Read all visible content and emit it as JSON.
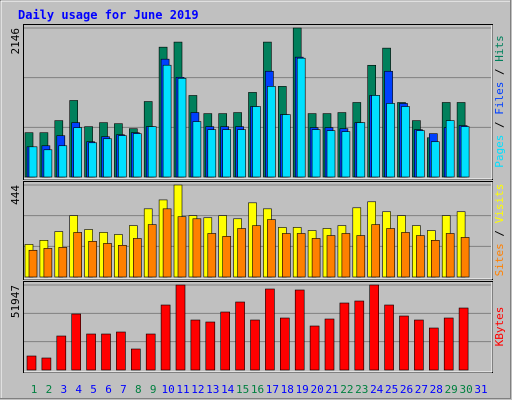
{
  "chart_data": [
    {
      "type": "bar",
      "title": "Daily usage for June 2019",
      "categories": [
        "1",
        "2",
        "3",
        "4",
        "5",
        "6",
        "7",
        "8",
        "9",
        "10",
        "11",
        "12",
        "13",
        "14",
        "15",
        "16",
        "17",
        "18",
        "19",
        "20",
        "21",
        "22",
        "23",
        "24",
        "25",
        "26",
        "27",
        "28",
        "29",
        "30",
        "31"
      ],
      "category_colors": [
        "#008040",
        "#008040",
        "#0000ff",
        "#0000ff",
        "#0000ff",
        "#0000ff",
        "#0000ff",
        "#008040",
        "#008040",
        "#0000ff",
        "#0000ff",
        "#0000ff",
        "#0000ff",
        "#0000ff",
        "#008040",
        "#008040",
        "#0000ff",
        "#0000ff",
        "#0000ff",
        "#0000ff",
        "#0000ff",
        "#008040",
        "#008040",
        "#0000ff",
        "#0000ff",
        "#0000ff",
        "#0000ff",
        "#0000ff",
        "#008040",
        "#008040",
        "#0000ff"
      ],
      "legend_separator": " / ",
      "ylim": [
        0,
        2146
      ],
      "yticks": [
        2146
      ],
      "series": [
        {
          "name": "Hits",
          "color": "#00805c",
          "values": [
            638,
            638,
            812,
            1102,
            725,
            783,
            768,
            696,
            1087,
            1870,
            1943,
            1174,
            913,
            913,
            928,
            1218,
            1943,
            1305,
            2146,
            913,
            913,
            928,
            1073,
            1609,
            1856,
            1073,
            812,
            565,
            1073,
            1073,
            0
          ]
        },
        {
          "name": "Files",
          "color": "#0040ff",
          "values": [
            435,
            450,
            595,
            783,
            508,
            580,
            609,
            638,
            725,
            1697,
            1436,
            928,
            725,
            725,
            725,
            1015,
            1523,
            899,
            1726,
            711,
            711,
            696,
            783,
            1175,
            1523,
            1059,
            682,
            624,
            711,
            740,
            0
          ]
        },
        {
          "name": "Pages",
          "color": "#00e0ff",
          "values": [
            435,
            392,
            450,
            711,
            493,
            551,
            595,
            624,
            725,
            1610,
            1421,
            798,
            682,
            682,
            682,
            1015,
            1305,
            899,
            1711,
            682,
            667,
            653,
            783,
            1175,
            1059,
            1015,
            667,
            508,
            812,
            725,
            0
          ]
        }
      ]
    },
    {
      "type": "bar",
      "ylim": [
        0,
        444
      ],
      "yticks": [
        444
      ],
      "series": [
        {
          "name": "Visits",
          "color": "#ffff00",
          "values": [
            157,
            177,
            219,
            296,
            229,
            215,
            205,
            248,
            329,
            372,
            444,
            296,
            286,
            296,
            281,
            358,
            329,
            239,
            239,
            224,
            234,
            248,
            334,
            363,
            315,
            296,
            248,
            224,
            296,
            315,
            0
          ]
        },
        {
          "name": "Sites",
          "color": "#ff8000",
          "values": [
            129,
            138,
            143,
            215,
            172,
            162,
            153,
            186,
            253,
            329,
            291,
            281,
            210,
            196,
            234,
            248,
            277,
            210,
            210,
            186,
            200,
            210,
            200,
            253,
            234,
            215,
            200,
            177,
            210,
            191,
            0
          ]
        }
      ]
    },
    {
      "type": "bar",
      "ylim": [
        0,
        51947
      ],
      "yticks": [
        51947
      ],
      "series": [
        {
          "name": "KBytes",
          "color": "#ff0000",
          "values": [
            8554,
            7332,
            20774,
            34216,
            21996,
            21996,
            23218,
            12831,
            21996,
            39715,
            51947,
            30550,
            29328,
            35438,
            41548,
            30550,
            49503,
            31772,
            48892,
            26884,
            31161,
            40937,
            42159,
            51947,
            39715,
            32994,
            30550,
            25662,
            31772,
            37883,
            0
          ]
        }
      ]
    }
  ]
}
